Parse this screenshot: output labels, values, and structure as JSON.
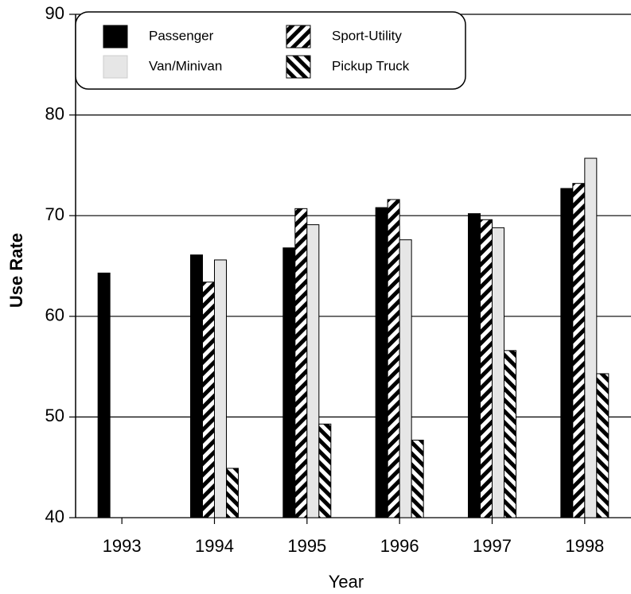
{
  "chart_data": {
    "type": "bar",
    "x_label": "Year",
    "y_label": "Use Rate",
    "categories": [
      "1993",
      "1994",
      "1995",
      "1996",
      "1997",
      "1998"
    ],
    "series": [
      {
        "name": "Passenger",
        "color": "#000000",
        "pattern": "solid",
        "values": [
          64.3,
          66.1,
          66.8,
          70.8,
          70.2,
          72.7
        ]
      },
      {
        "name": "Sport-Utility",
        "color": "#000000",
        "pattern": "diagonal-down",
        "values": [
          null,
          63.4,
          70.7,
          71.6,
          69.6,
          73.2
        ]
      },
      {
        "name": "Van/Minivan",
        "color": "#e6e6e6",
        "pattern": "solid",
        "values": [
          null,
          65.6,
          69.1,
          67.6,
          68.8,
          75.7
        ]
      },
      {
        "name": "Pickup Truck",
        "color": "#000000",
        "pattern": "diagonal-up",
        "values": [
          null,
          44.9,
          49.3,
          47.7,
          56.6,
          54.3
        ]
      }
    ],
    "ylim": [
      40,
      90
    ],
    "yticks": [
      40,
      50,
      60,
      70,
      80,
      90
    ],
    "grid": true
  }
}
